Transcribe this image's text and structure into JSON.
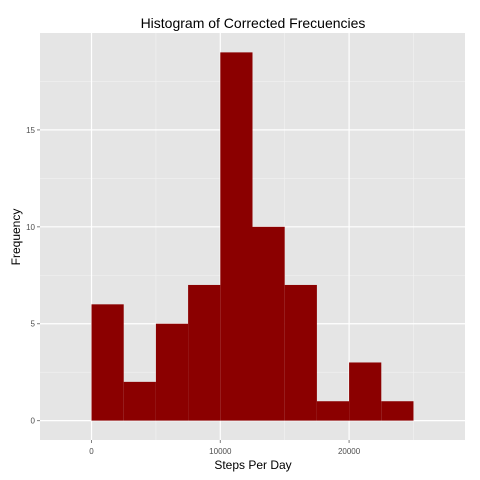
{
  "chart_data": {
    "type": "bar",
    "title": "Histogram of Corrected Frecuencies",
    "xlabel": "Steps Per Day",
    "ylabel": "Frequency",
    "bins": [
      {
        "x0": 0,
        "x1": 2500,
        "count": 6
      },
      {
        "x0": 2500,
        "x1": 5000,
        "count": 2
      },
      {
        "x0": 5000,
        "x1": 7500,
        "count": 5
      },
      {
        "x0": 7500,
        "x1": 10000,
        "count": 7
      },
      {
        "x0": 10000,
        "x1": 12500,
        "count": 19
      },
      {
        "x0": 12500,
        "x1": 15000,
        "count": 10
      },
      {
        "x0": 15000,
        "x1": 17500,
        "count": 7
      },
      {
        "x0": 17500,
        "x1": 20000,
        "count": 1
      },
      {
        "x0": 20000,
        "x1": 22500,
        "count": 3
      },
      {
        "x0": 22500,
        "x1": 25000,
        "count": 1
      }
    ],
    "xlim": [
      -4000,
      29000
    ],
    "ylim": [
      -1,
      20
    ],
    "x_ticks": [
      0,
      10000,
      20000
    ],
    "y_ticks": [
      0,
      5,
      10,
      15
    ],
    "grid": true,
    "colors": {
      "bar": "#8b0000",
      "panel": "#e5e5e5",
      "grid_major": "#ffffff",
      "grid_minor": "#f2f2f2"
    }
  }
}
